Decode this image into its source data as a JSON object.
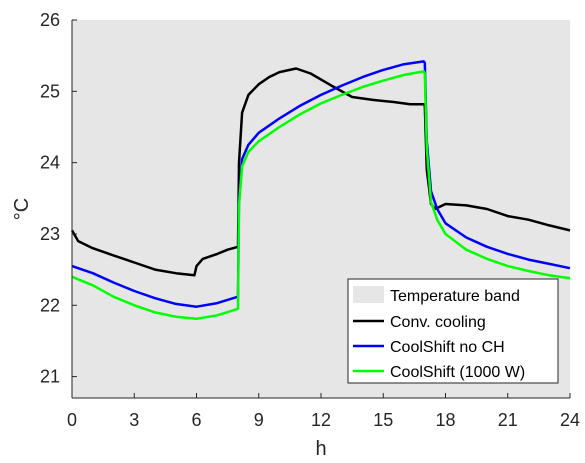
{
  "chart_data": {
    "type": "line",
    "title": "",
    "xlabel": "h",
    "ylabel": "°C",
    "xlim": [
      0,
      24
    ],
    "ylim": [
      20.7,
      26
    ],
    "xticks": [
      0,
      3,
      6,
      9,
      12,
      15,
      18,
      21,
      24
    ],
    "yticks": [
      21,
      22,
      23,
      24,
      25,
      26
    ],
    "grid": false,
    "legend_position": "bottom-right",
    "band": {
      "name": "Temperature band",
      "y_range": [
        20.7,
        26
      ],
      "color": "#e6e6e6"
    },
    "series": [
      {
        "name": "Conv. cooling",
        "color": "#000000",
        "x": [
          0,
          0.3,
          1,
          2,
          3,
          4,
          5,
          5.9,
          6,
          6.3,
          7,
          7.5,
          8.0,
          8.05,
          8.2,
          8.5,
          9,
          9.5,
          10,
          10.8,
          11.5,
          12.5,
          13.5,
          14.5,
          15.5,
          16.3,
          16.95,
          17.0,
          17.1,
          17.3,
          17.5,
          18,
          19,
          20,
          21,
          22,
          23,
          24
        ],
        "y": [
          23.05,
          22.9,
          22.8,
          22.7,
          22.6,
          22.5,
          22.45,
          22.42,
          22.55,
          22.65,
          22.72,
          22.78,
          22.82,
          24.0,
          24.7,
          24.95,
          25.1,
          25.2,
          25.27,
          25.32,
          25.25,
          25.08,
          24.92,
          24.88,
          24.85,
          24.82,
          24.82,
          24.8,
          23.9,
          23.42,
          23.35,
          23.42,
          23.4,
          23.35,
          23.25,
          23.2,
          23.12,
          23.05
        ]
      },
      {
        "name": "CoolShift no CH",
        "color": "#0000ff",
        "x": [
          0,
          1,
          2,
          3,
          4,
          5,
          6,
          7,
          8.0,
          8.05,
          8.2,
          8.5,
          9,
          10,
          11,
          12,
          13,
          14,
          15,
          16,
          16.95,
          17.0,
          17.1,
          17.3,
          17.6,
          18,
          19,
          20,
          21,
          22,
          23,
          24
        ],
        "y": [
          22.55,
          22.45,
          22.32,
          22.2,
          22.1,
          22.02,
          21.98,
          22.03,
          22.12,
          23.5,
          24.05,
          24.25,
          24.42,
          24.62,
          24.8,
          24.95,
          25.08,
          25.2,
          25.3,
          25.38,
          25.42,
          25.4,
          24.3,
          23.6,
          23.35,
          23.15,
          22.95,
          22.82,
          22.72,
          22.64,
          22.58,
          22.52
        ]
      },
      {
        "name": "CoolShift (1000 W)",
        "color": "#00ff00",
        "x": [
          0,
          1,
          2,
          3,
          4,
          5,
          6,
          7,
          8.0,
          8.05,
          8.2,
          8.5,
          9,
          10,
          11,
          12,
          13,
          14,
          15,
          16,
          16.95,
          17.0,
          17.1,
          17.3,
          17.6,
          18,
          19,
          20,
          21,
          22,
          23,
          24
        ],
        "y": [
          22.4,
          22.28,
          22.12,
          22.0,
          21.9,
          21.84,
          21.81,
          21.86,
          21.95,
          23.4,
          23.95,
          24.15,
          24.3,
          24.5,
          24.68,
          24.83,
          24.95,
          25.06,
          25.15,
          25.23,
          25.28,
          25.25,
          24.2,
          23.45,
          23.2,
          23.0,
          22.78,
          22.65,
          22.55,
          22.48,
          22.42,
          22.38
        ]
      }
    ]
  }
}
